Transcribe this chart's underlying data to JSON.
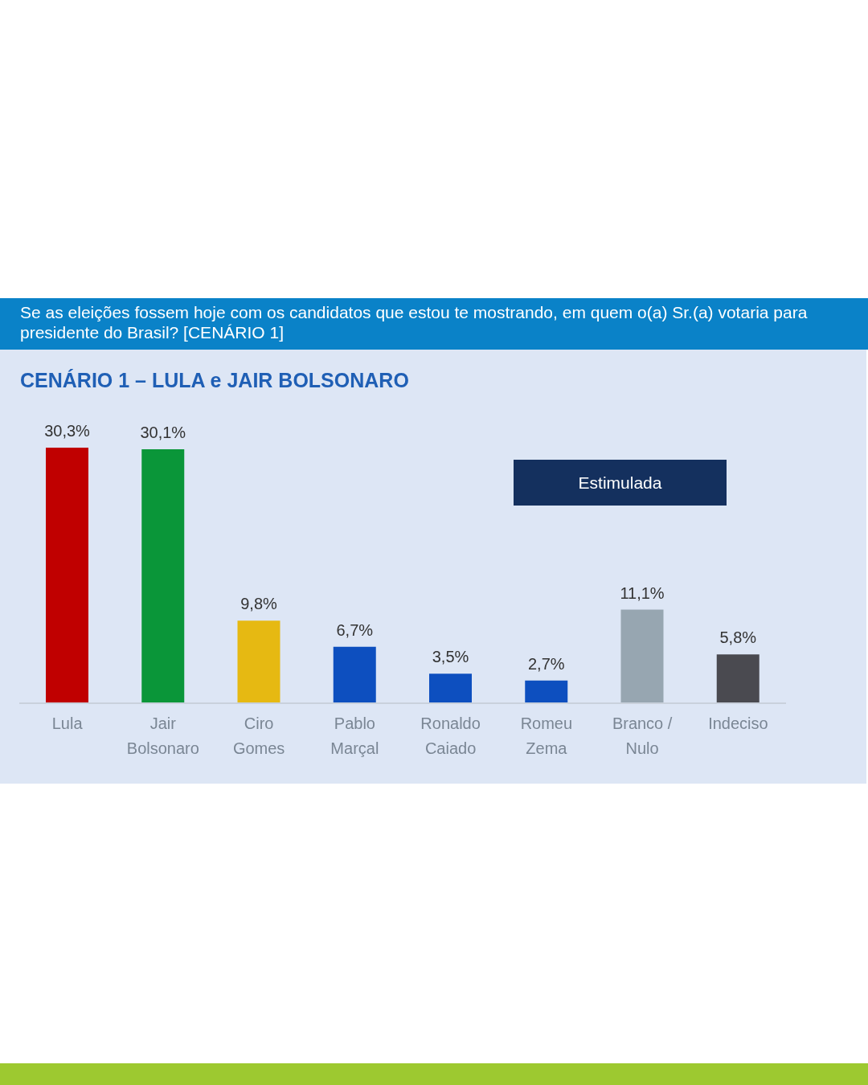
{
  "chart_data": {
    "type": "bar",
    "title": "Se as eleições fossem hoje com os candidatos que estou te mostrando, em quem o(a) Sr.(a) votaria para presidente do Brasil? [CENÁRIO 1]",
    "subtitle": "CENÁRIO 1 – LULA e JAIR BOLSONARO",
    "categories": [
      "Lula",
      "Jair Bolsonaro",
      "Ciro Gomes",
      "Pablo Marçal",
      "Ronaldo Caiado",
      "Romeu Zema",
      "Branco / Nulo",
      "Indeciso"
    ],
    "values": [
      30.3,
      30.1,
      9.8,
      6.7,
      3.5,
      2.7,
      11.1,
      5.8
    ],
    "colors": [
      "#c00000",
      "#0a9639",
      "#e6b912",
      "#0d4fbf",
      "#0d4fbf",
      "#0d4fbf",
      "#97a6b1",
      "#4a4a50"
    ],
    "value_labels": [
      "30,3%",
      "30,1%",
      "9,8%",
      "6,7%",
      "3,5%",
      "2,7%",
      "11,1%",
      "5,8%"
    ],
    "annotations": [
      "Estimulada"
    ]
  }
}
